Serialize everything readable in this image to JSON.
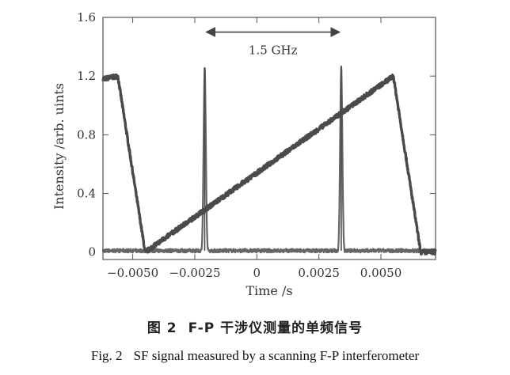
{
  "chart_data": {
    "type": "line",
    "title": "",
    "xlabel": "Time /s",
    "ylabel": "Intensity /arb. uints",
    "xlim": [
      -0.0062,
      0.0072
    ],
    "ylim": [
      -0.05,
      1.6
    ],
    "x_ticks": [
      -0.005,
      -0.0025,
      0,
      0.0025,
      0.005
    ],
    "x_tick_labels": [
      "−0.0050",
      "−0.0025",
      "0",
      "0.0025",
      "0.0050"
    ],
    "y_ticks": [
      0,
      0.4,
      0.8,
      1.2,
      1.6
    ],
    "y_tick_labels": [
      "0",
      "0.4",
      "0.8",
      "1.2",
      "1.6"
    ],
    "grid": false,
    "series": [
      {
        "ramp_points": [
          [
            -0.0062,
            1.18
          ],
          [
            -0.0056,
            1.2
          ],
          [
            -0.0045,
            0.0
          ],
          [
            0.0055,
            1.2
          ],
          [
            0.0066,
            0.0
          ],
          [
            0.0072,
            0.0
          ]
        ],
        "baseline": 0.01,
        "peaks": [
          {
            "x": -0.0021,
            "height": 1.26
          },
          {
            "x": 0.0034,
            "height": 1.26
          }
        ]
      }
    ],
    "annotations": [
      {
        "text": "1.5 GHz",
        "x_start": -0.0021,
        "x_end": 0.0034,
        "y": 1.5,
        "text_y": 1.35
      }
    ]
  },
  "caption": {
    "cn_number": "图 2",
    "cn_text": "F-P 干涉仪测量的单频信号",
    "en_number": "Fig. 2",
    "en_text": "SF signal measured by a scanning F-P interferometer"
  },
  "colors": {
    "trace": "#4a4a4a",
    "axis": "#555555",
    "text": "#333333"
  }
}
